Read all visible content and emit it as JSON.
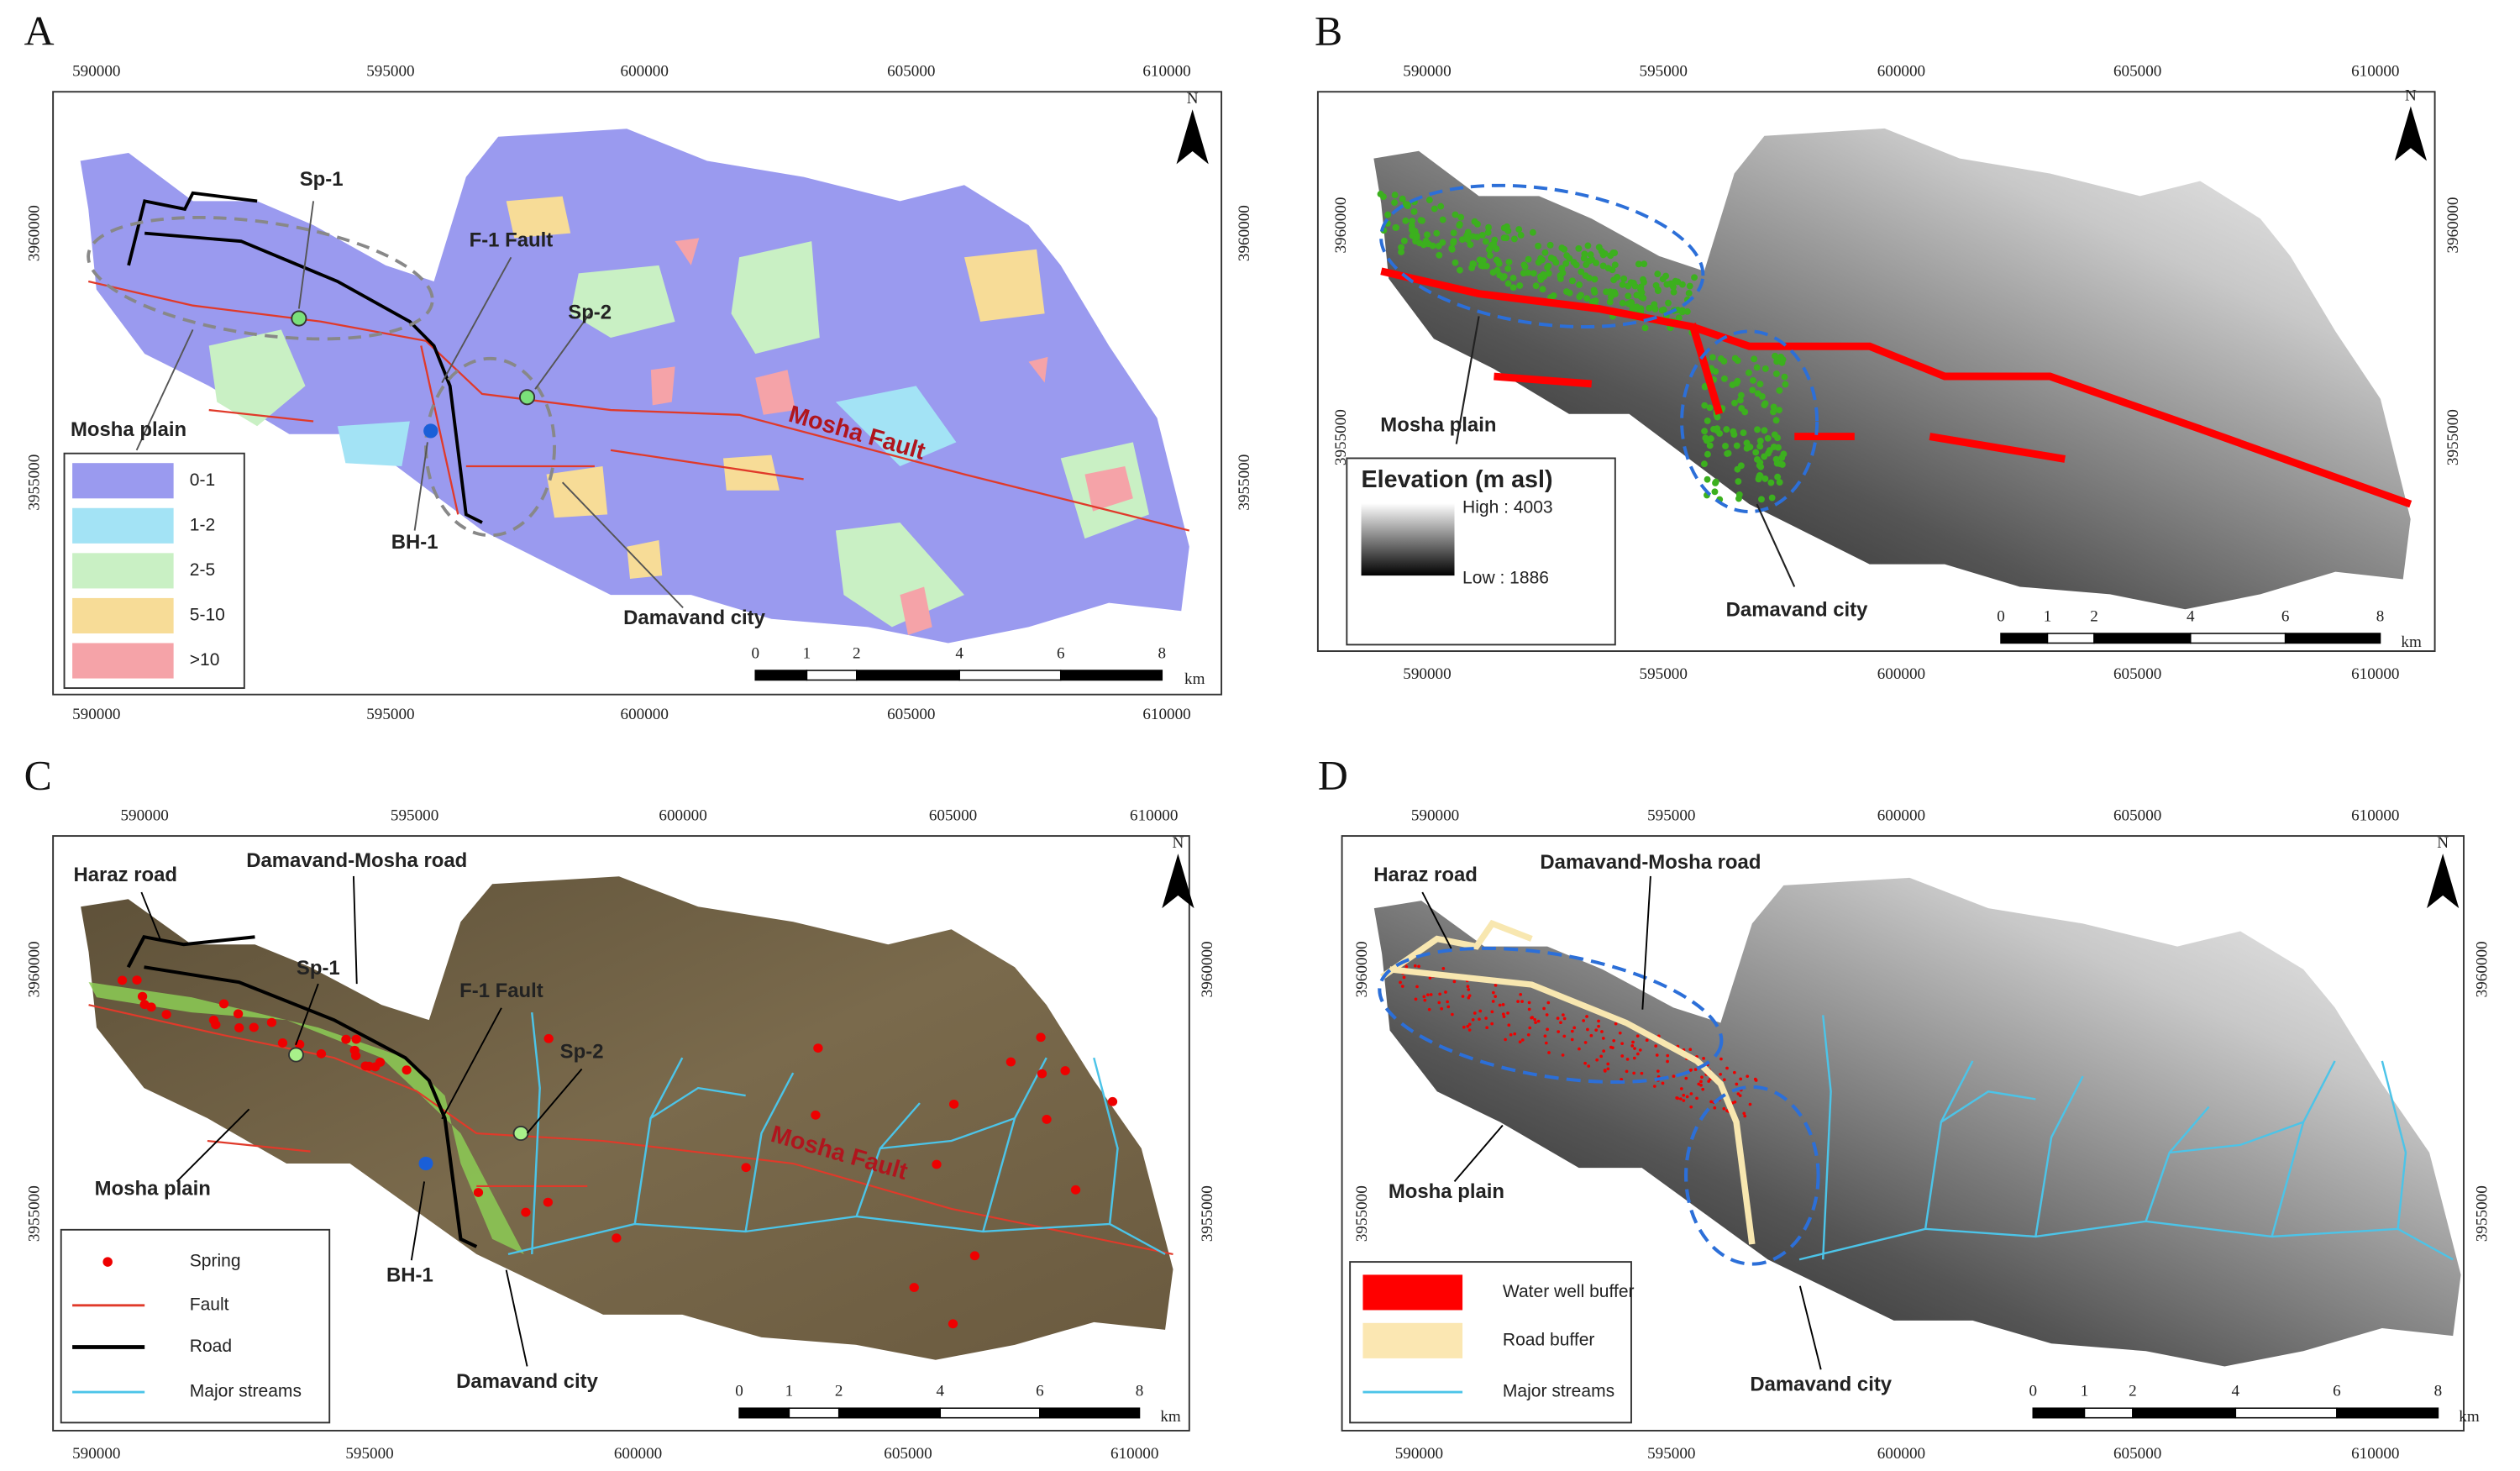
{
  "panels": [
    {
      "letter": "A",
      "x_ticks": [
        590000,
        595000,
        600000,
        605000,
        610000
      ],
      "y_ticks": [
        3960000,
        3955000
      ],
      "north": "N",
      "labels": [
        "Sp-1",
        "F-1 Fault",
        "Sp-2",
        "Mosha Fault",
        "Mosha plain",
        "BH-1",
        "Damavand city"
      ],
      "legend": [
        "0-1",
        "1-2",
        "2-5",
        "5-10",
        ">10"
      ],
      "legend_colors": [
        "#9a9aef",
        "#a3e3f5",
        "#c9f0c4",
        "#f7dc97",
        "#f5a3a8"
      ],
      "scale": [
        "0",
        "1",
        "2",
        "4",
        "6",
        "8"
      ],
      "scale_unit": "km"
    },
    {
      "letter": "B",
      "x_ticks": [
        590000,
        595000,
        600000,
        605000,
        610000
      ],
      "y_ticks": [
        3960000,
        3955000
      ],
      "north": "N",
      "labels": [
        "Mosha plain",
        "Damavand city"
      ],
      "legend_title": "Elevation (m asl)",
      "legend_high": "High : 4003",
      "legend_low": "Low : 1886",
      "scale": [
        "0",
        "1",
        "2",
        "4",
        "6",
        "8"
      ],
      "scale_unit": "km"
    },
    {
      "letter": "C",
      "x_ticks": [
        590000,
        595000,
        600000,
        605000,
        610000
      ],
      "y_ticks": [
        3960000,
        3955000
      ],
      "north": "N",
      "labels": [
        "Haraz road",
        "Damavand-Mosha road",
        "Sp-1",
        "F-1 Fault",
        "Sp-2",
        "Mosha Fault",
        "Mosha plain",
        "BH-1",
        "Damavand city"
      ],
      "legend": [
        "Spring",
        "Fault",
        "Road",
        "Major streams"
      ],
      "scale": [
        "0",
        "1",
        "2",
        "4",
        "6",
        "8"
      ],
      "scale_unit": "km"
    },
    {
      "letter": "D",
      "x_ticks": [
        590000,
        595000,
        600000,
        605000,
        610000
      ],
      "y_ticks": [
        3960000,
        3955000
      ],
      "north": "N",
      "labels": [
        "Haraz road",
        "Damavand-Mosha road",
        "Mosha plain",
        "Damavand city"
      ],
      "legend": [
        "Water well buffer",
        "Road buffer",
        "Major streams"
      ],
      "scale": [
        "0",
        "1",
        "2",
        "4",
        "6",
        "8"
      ],
      "scale_unit": "km"
    }
  ]
}
